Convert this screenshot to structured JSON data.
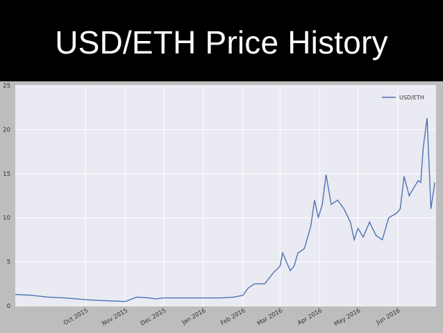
{
  "slide": {
    "title": "USD/ETH Price History"
  },
  "chart_data": {
    "type": "line",
    "title": "",
    "xlabel": "",
    "ylabel": "",
    "x_range": [
      "2015-08-07",
      "2016-07-01"
    ],
    "ylim": [
      0,
      25
    ],
    "yticks": [
      0,
      5,
      10,
      15,
      20,
      25
    ],
    "xticks": [
      {
        "date": "2015-10-01",
        "label": "Oct 2015"
      },
      {
        "date": "2015-11-01",
        "label": "Nov 2015"
      },
      {
        "date": "2015-12-01",
        "label": "Dec 2015"
      },
      {
        "date": "2016-01-01",
        "label": "Jan 2016"
      },
      {
        "date": "2016-02-01",
        "label": "Feb 2016"
      },
      {
        "date": "2016-03-01",
        "label": "Mar 2016"
      },
      {
        "date": "2016-04-01",
        "label": "Apr 2016"
      },
      {
        "date": "2016-05-01",
        "label": "May 2016"
      },
      {
        "date": "2016-06-01",
        "label": "Jun 2016"
      }
    ],
    "grid": true,
    "legend": {
      "position": "top-right"
    },
    "colors": {
      "line": "#4c72b0",
      "plot_bg": "#eaeaf2",
      "grid": "#ffffff",
      "frame": "#bdbdbd"
    },
    "series": [
      {
        "name": "USD/ETH",
        "x": [
          "2015-08-07",
          "2015-08-20",
          "2015-09-01",
          "2015-09-15",
          "2015-10-01",
          "2015-10-15",
          "2015-11-01",
          "2015-11-10",
          "2015-11-20",
          "2015-11-25",
          "2015-12-01",
          "2015-12-15",
          "2016-01-01",
          "2016-01-15",
          "2016-01-25",
          "2016-02-01",
          "2016-02-05",
          "2016-02-10",
          "2016-02-18",
          "2016-02-25",
          "2016-03-01",
          "2016-03-03",
          "2016-03-06",
          "2016-03-09",
          "2016-03-12",
          "2016-03-15",
          "2016-03-20",
          "2016-03-25",
          "2016-03-28",
          "2016-03-31",
          "2016-04-03",
          "2016-04-06",
          "2016-04-10",
          "2016-04-15",
          "2016-04-20",
          "2016-04-25",
          "2016-04-28",
          "2016-05-01",
          "2016-05-05",
          "2016-05-10",
          "2016-05-15",
          "2016-05-20",
          "2016-05-25",
          "2016-05-31",
          "2016-06-03",
          "2016-06-06",
          "2016-06-10",
          "2016-06-14",
          "2016-06-17",
          "2016-06-19",
          "2016-06-21",
          "2016-06-24",
          "2016-06-27",
          "2016-06-30"
        ],
        "y": [
          1.3,
          1.2,
          1.0,
          0.9,
          0.7,
          0.6,
          0.5,
          1.0,
          0.9,
          0.8,
          0.9,
          0.9,
          0.9,
          0.9,
          1.0,
          1.2,
          2.0,
          2.5,
          2.5,
          3.8,
          4.5,
          6.0,
          5.0,
          4.0,
          4.5,
          6.0,
          6.5,
          9.0,
          12.0,
          10.0,
          11.5,
          14.9,
          11.5,
          12.0,
          11.0,
          9.5,
          7.5,
          8.8,
          7.8,
          9.5,
          8.0,
          7.5,
          10.0,
          10.5,
          11.0,
          14.7,
          12.5,
          13.5,
          14.2,
          14.0,
          18.0,
          21.3,
          11.0,
          14.0
        ]
      }
    ]
  }
}
